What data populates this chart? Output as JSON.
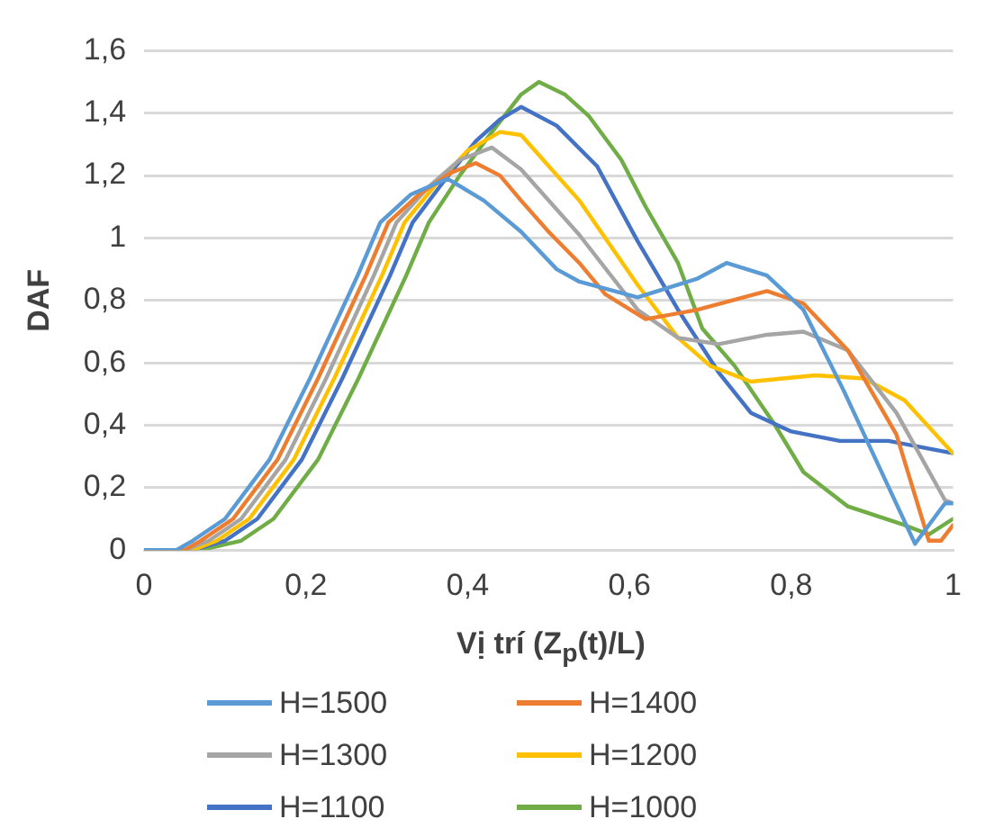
{
  "chart_data": {
    "type": "line",
    "xlabel": "Vị trí (Z$_{p}$(t)/L)",
    "ylabel": "DAF",
    "xlim": [
      0,
      1
    ],
    "xticks": [
      0,
      {
        "value": 0.2,
        "label": "0,2"
      },
      {
        "value": 0.4,
        "label": "0,4"
      },
      {
        "value": 0.6,
        "label": "0,6"
      },
      {
        "value": 0.8,
        "label": "0,8"
      },
      1
    ],
    "ylim": [
      0,
      1.6
    ],
    "yticks": [
      0,
      {
        "value": 0.2,
        "label": "0,2"
      },
      {
        "value": 0.4,
        "label": "0,4"
      },
      {
        "value": 0.6,
        "label": "0,6"
      },
      {
        "value": 0.8,
        "label": "0,8"
      },
      1,
      {
        "value": 1.2,
        "label": "1,2"
      },
      {
        "value": 1.4,
        "label": "1,4"
      },
      {
        "value": 1.6,
        "label": "1,6"
      }
    ],
    "grid": "y",
    "legend": "bottom",
    "marker": "none",
    "line_style": "solid",
    "series": [
      {
        "name": "H=1500",
        "color": "#5b9bd5",
        "x": [
          0,
          0.04,
          0.06,
          0.1,
          0.155,
          0.205,
          0.264,
          0.292,
          0.33,
          0.375,
          0.42,
          0.466,
          0.51,
          0.538,
          0.61,
          0.684,
          0.72,
          0.77,
          0.815,
          0.865,
          0.917,
          0.953,
          0.99,
          1
        ],
        "values": [
          0,
          0,
          0.03,
          0.1,
          0.29,
          0.55,
          0.88,
          1.05,
          1.14,
          1.19,
          1.12,
          1.02,
          0.9,
          0.86,
          0.81,
          0.87,
          0.92,
          0.88,
          0.77,
          0.51,
          0.22,
          0.02,
          0.15,
          0.15
        ]
      },
      {
        "name": "H=1400",
        "color": "#ed7d31",
        "x": [
          0,
          0.05,
          0.07,
          0.11,
          0.165,
          0.215,
          0.274,
          0.302,
          0.34,
          0.38,
          0.41,
          0.44,
          0.466,
          0.5,
          0.538,
          0.57,
          0.62,
          0.684,
          0.77,
          0.815,
          0.87,
          0.93,
          0.97,
          0.985,
          1
        ],
        "values": [
          0,
          0,
          0.03,
          0.1,
          0.29,
          0.55,
          0.88,
          1.05,
          1.14,
          1.21,
          1.24,
          1.2,
          1.12,
          1.02,
          0.92,
          0.82,
          0.74,
          0.77,
          0.83,
          0.79,
          0.64,
          0.37,
          0.03,
          0.03,
          0.08
        ]
      },
      {
        "name": "H=1300",
        "color": "#a5a5a5",
        "x": [
          0,
          0.05,
          0.08,
          0.12,
          0.175,
          0.225,
          0.284,
          0.312,
          0.35,
          0.39,
          0.43,
          0.466,
          0.538,
          0.61,
          0.66,
          0.71,
          0.77,
          0.815,
          0.87,
          0.93,
          0.99,
          1
        ],
        "values": [
          0,
          0,
          0.03,
          0.1,
          0.29,
          0.55,
          0.88,
          1.05,
          1.16,
          1.25,
          1.29,
          1.22,
          1.01,
          0.77,
          0.68,
          0.66,
          0.69,
          0.7,
          0.64,
          0.44,
          0.16,
          0.15
        ]
      },
      {
        "name": "H=1200",
        "color": "#ffc000",
        "x": [
          0,
          0.06,
          0.09,
          0.13,
          0.185,
          0.235,
          0.294,
          0.322,
          0.36,
          0.4,
          0.44,
          0.466,
          0.538,
          0.61,
          0.66,
          0.7,
          0.75,
          0.83,
          0.89,
          0.94,
          1
        ],
        "values": [
          0,
          0,
          0.03,
          0.1,
          0.29,
          0.55,
          0.88,
          1.05,
          1.17,
          1.28,
          1.34,
          1.33,
          1.12,
          0.85,
          0.68,
          0.59,
          0.54,
          0.56,
          0.55,
          0.48,
          0.31
        ]
      },
      {
        "name": "H=1100",
        "color": "#4472c4",
        "x": [
          0,
          0.06,
          0.1,
          0.14,
          0.195,
          0.245,
          0.304,
          0.332,
          0.37,
          0.41,
          0.44,
          0.466,
          0.51,
          0.56,
          0.61,
          0.66,
          0.71,
          0.75,
          0.8,
          0.86,
          0.92,
          1
        ],
        "values": [
          0,
          0,
          0.03,
          0.1,
          0.29,
          0.55,
          0.88,
          1.05,
          1.18,
          1.31,
          1.38,
          1.42,
          1.36,
          1.23,
          0.99,
          0.77,
          0.57,
          0.44,
          0.38,
          0.35,
          0.35,
          0.31
        ]
      },
      {
        "name": "H=1000",
        "color": "#70ad47",
        "x": [
          0,
          0.07,
          0.12,
          0.16,
          0.215,
          0.265,
          0.324,
          0.352,
          0.39,
          0.43,
          0.466,
          0.488,
          0.52,
          0.55,
          0.59,
          0.62,
          0.66,
          0.69,
          0.73,
          0.78,
          0.815,
          0.87,
          0.94,
          0.97,
          1
        ],
        "values": [
          0,
          0,
          0.03,
          0.1,
          0.29,
          0.55,
          0.88,
          1.05,
          1.2,
          1.34,
          1.46,
          1.5,
          1.46,
          1.39,
          1.25,
          1.1,
          0.92,
          0.71,
          0.59,
          0.4,
          0.25,
          0.14,
          0.08,
          0.05,
          0.1
        ]
      }
    ]
  }
}
